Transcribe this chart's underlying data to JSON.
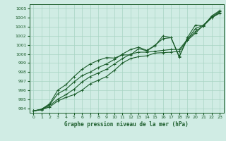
{
  "title": "Graphe pression niveau de la mer (hPa)",
  "bg_color": "#d0ece4",
  "grid_color": "#a8d4c4",
  "line_color": "#1a5c2a",
  "marker_color": "#1a5c2a",
  "xlim": [
    -0.5,
    23.5
  ],
  "ylim": [
    993.5,
    1005.5
  ],
  "yticks": [
    994,
    995,
    996,
    997,
    998,
    999,
    1000,
    1001,
    1002,
    1003,
    1004,
    1005
  ],
  "xticks": [
    0,
    1,
    2,
    3,
    4,
    5,
    6,
    7,
    8,
    9,
    10,
    11,
    12,
    13,
    14,
    15,
    16,
    17,
    18,
    19,
    20,
    21,
    22,
    23
  ],
  "series": [
    [
      993.7,
      993.85,
      994.15,
      994.8,
      995.2,
      995.5,
      996.0,
      996.7,
      997.1,
      997.5,
      998.2,
      999.0,
      999.5,
      999.7,
      999.8,
      1000.1,
      1000.15,
      1000.2,
      1000.3,
      1001.5,
      1002.3,
      1003.2,
      1004.0,
      1004.5
    ],
    [
      993.7,
      993.85,
      994.3,
      995.0,
      995.5,
      996.1,
      996.9,
      997.5,
      997.9,
      998.3,
      998.9,
      999.5,
      1000.0,
      1000.2,
      1000.2,
      1000.3,
      1000.4,
      1000.5,
      1000.5,
      1001.6,
      1002.5,
      1003.1,
      1004.0,
      1004.6
    ],
    [
      993.7,
      993.9,
      994.4,
      995.6,
      996.1,
      996.9,
      997.6,
      998.0,
      998.5,
      998.9,
      999.4,
      1000.0,
      1000.5,
      1000.75,
      1000.4,
      1000.95,
      1001.7,
      1001.8,
      999.75,
      1001.6,
      1002.8,
      1003.2,
      1004.1,
      1004.7
    ],
    [
      993.7,
      993.9,
      994.5,
      996.0,
      996.6,
      997.5,
      998.3,
      998.9,
      999.3,
      999.6,
      999.55,
      999.9,
      999.9,
      1000.6,
      1000.35,
      1000.9,
      1002.0,
      1001.8,
      999.65,
      1001.8,
      1003.2,
      1003.1,
      1004.2,
      1004.8
    ]
  ]
}
